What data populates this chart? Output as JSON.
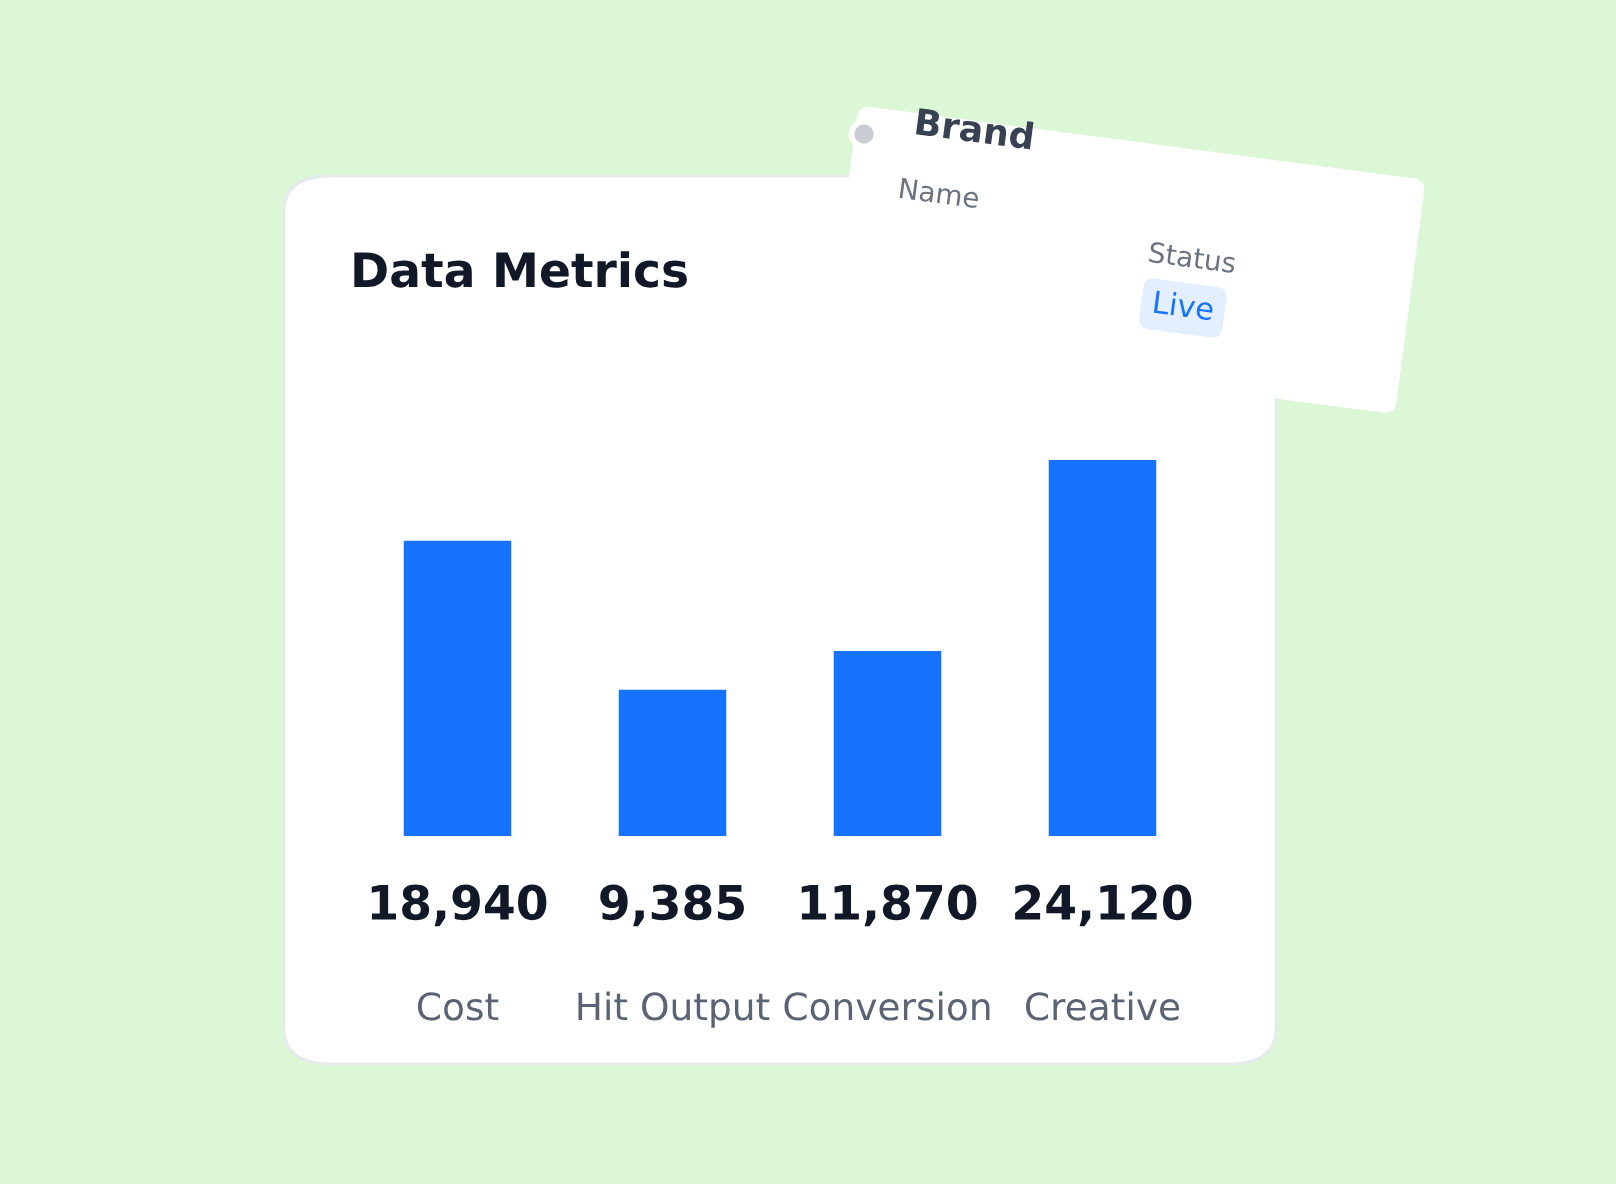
{
  "chart_data": {
    "type": "bar",
    "title": "Data Metrics",
    "categories": [
      "Cost",
      "Hit Output",
      "Conversion",
      "Creative"
    ],
    "values": [
      18940,
      9385,
      11870,
      24120
    ],
    "value_labels": [
      "18,940",
      "9,385",
      "11,870",
      "24,120"
    ],
    "color": "#1673ff",
    "annotations": [
      "Brand",
      "Name",
      "Status",
      "Live"
    ]
  }
}
